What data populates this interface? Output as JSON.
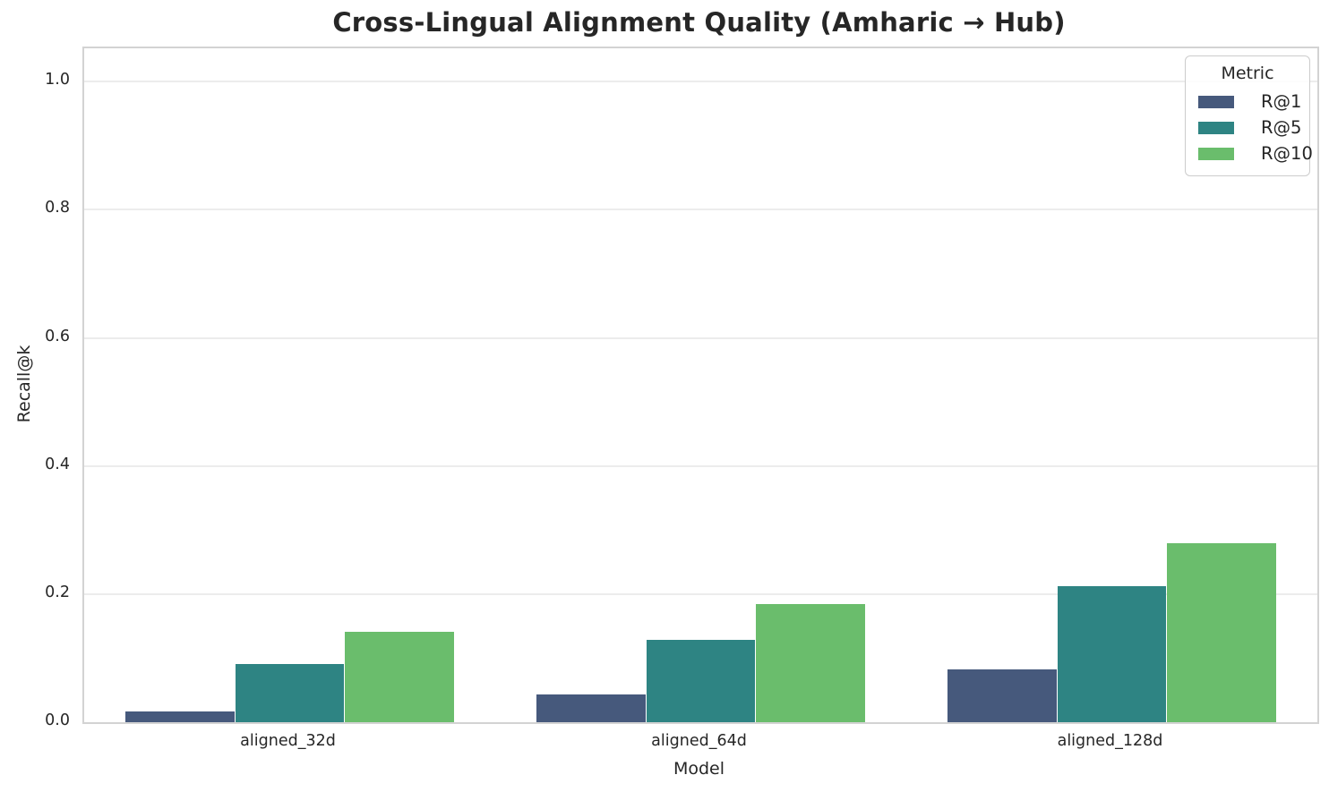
{
  "chart_data": {
    "type": "bar",
    "title": "Cross-Lingual Alignment Quality (Amharic → Hub)",
    "xlabel": "Model",
    "ylabel": "Recall@k",
    "categories": [
      "aligned_32d",
      "aligned_64d",
      "aligned_128d"
    ],
    "series": [
      {
        "name": "R@1",
        "color": "#46597c",
        "values": [
          0.017,
          0.044,
          0.082
        ]
      },
      {
        "name": "R@5",
        "color": "#2e8483",
        "values": [
          0.091,
          0.128,
          0.212
        ]
      },
      {
        "name": "R@10",
        "color": "#6abd6c",
        "values": [
          0.141,
          0.184,
          0.28
        ]
      }
    ],
    "legend_title": "Metric",
    "legend_position": "upper right",
    "yticks": [
      0.0,
      0.2,
      0.4,
      0.6,
      0.8,
      1.0
    ],
    "ylim": [
      0,
      1.052
    ],
    "grid": "horizontal",
    "bar_group_width_fraction": 0.8
  },
  "style": {
    "grid_color": "#ececec",
    "spine_color": "#d3d3d3",
    "text_color": "#262626",
    "legend_border_color": "#cccccc",
    "background_color": "#ffffff"
  }
}
